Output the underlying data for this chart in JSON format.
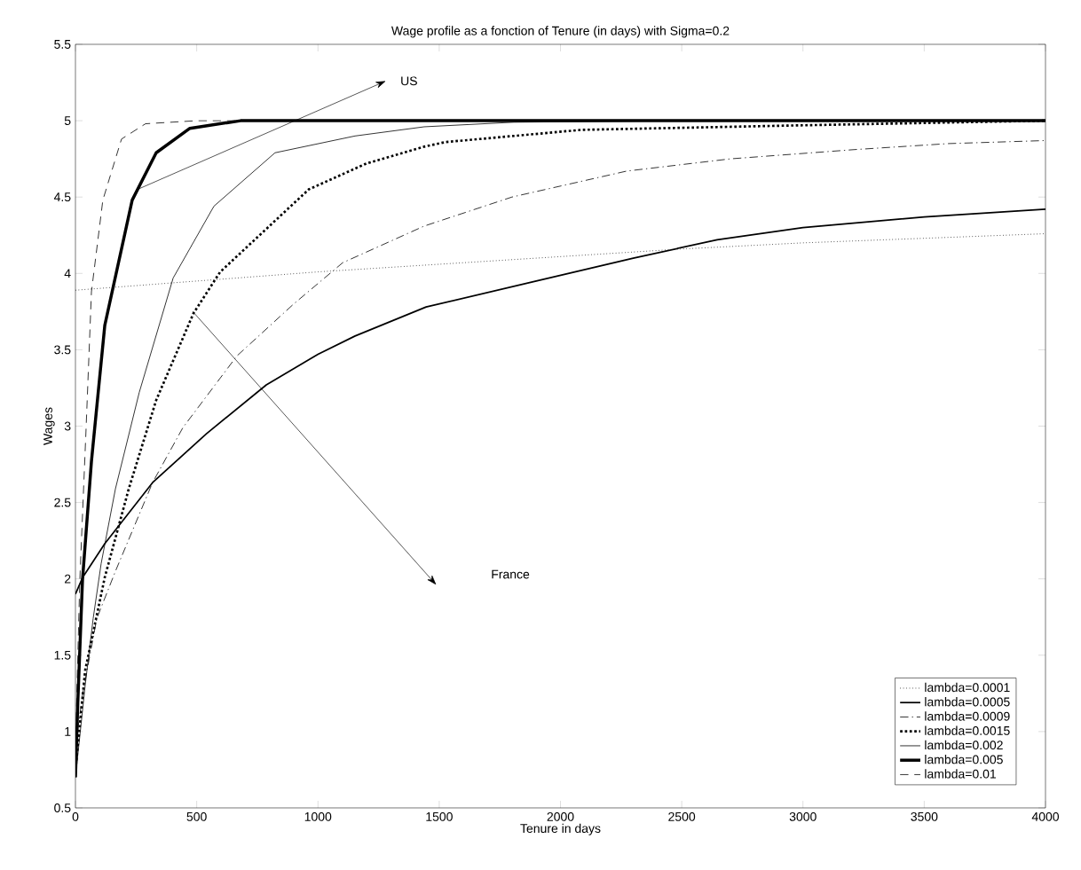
{
  "chart_data": {
    "type": "line",
    "title": "Wage profile as a fonction of Tenure (in days) with Sigma=0.2",
    "xlabel": "Tenure in days",
    "ylabel": "Wages",
    "xlim": [
      0,
      4000
    ],
    "ylim": [
      0.5,
      5.5
    ],
    "xticks": [
      0,
      500,
      1000,
      1500,
      2000,
      2500,
      3000,
      3500,
      4000
    ],
    "yticks": [
      0.5,
      1,
      1.5,
      2,
      2.5,
      3,
      3.5,
      4,
      4.5,
      5,
      5.5
    ],
    "grid": false,
    "legend": "bottom right",
    "annotations": [
      "US",
      "France"
    ],
    "series": [
      {
        "name": "lambda=0.0001",
        "color": "#000000",
        "line_style": "dotted",
        "x": [
          0,
          500,
          1000,
          1500,
          2000,
          2500,
          3000,
          3500,
          4000
        ],
        "values": [
          3.89,
          3.95,
          4.01,
          4.06,
          4.11,
          4.16,
          4.2,
          4.23,
          4.26
        ]
      },
      {
        "name": "lambda=0.0005",
        "color": "#000000",
        "line_style": "solid",
        "x": [
          0,
          30,
          121,
          318,
          540,
          787,
          1000,
          1153,
          1446,
          1900,
          2300,
          2646,
          3000,
          3500,
          4000
        ],
        "values": [
          1.9,
          2.01,
          2.23,
          2.63,
          2.95,
          3.27,
          3.47,
          3.59,
          3.78,
          3.95,
          4.1,
          4.22,
          4.3,
          4.37,
          4.42
        ]
      },
      {
        "name": "lambda=0.0009",
        "color": "#000000",
        "line_style": "dashdot",
        "x": [
          0,
          30,
          88,
          165,
          318,
          443,
          666,
          900,
          1102,
          1438,
          1800,
          2273,
          2700,
          3206,
          3600,
          4000
        ],
        "values": [
          0.9,
          1.25,
          1.74,
          2.05,
          2.63,
          2.99,
          3.46,
          3.8,
          4.07,
          4.31,
          4.5,
          4.67,
          4.75,
          4.81,
          4.85,
          4.87
        ]
      },
      {
        "name": "lambda=0.0015",
        "color": "#000000",
        "line_style": "dotted",
        "x": [
          0,
          40,
          121,
          220,
          333,
          487,
          597,
          962,
          1200,
          1438,
          1526,
          2086,
          3000,
          4000
        ],
        "values": [
          0.75,
          1.4,
          2.01,
          2.59,
          3.17,
          3.74,
          4.01,
          4.55,
          4.72,
          4.83,
          4.86,
          4.94,
          4.97,
          5.0
        ]
      },
      {
        "name": "lambda=0.002",
        "color": "#000000",
        "line_style": "solid",
        "x": [
          0,
          40,
          73,
          106,
          165,
          263,
          403,
          571,
          823,
          1153,
          1438,
          1808,
          2500,
          4000
        ],
        "values": [
          0.7,
          1.3,
          1.74,
          2.1,
          2.59,
          3.22,
          3.97,
          4.44,
          4.79,
          4.9,
          4.96,
          4.99,
          5.0,
          5.0
        ]
      },
      {
        "name": "lambda=0.005",
        "color": "#000000",
        "line_style": "solid",
        "x": [
          0,
          10,
          29,
          66,
          121,
          234,
          333,
          472,
          681,
          1000,
          4000
        ],
        "values": [
          0.7,
          1.2,
          1.99,
          2.77,
          3.66,
          4.48,
          4.79,
          4.95,
          5.0,
          5.0,
          5.0
        ]
      },
      {
        "name": "lambda=0.01",
        "color": "#000000",
        "line_style": "dashed",
        "x": [
          0,
          5,
          18,
          44,
          66,
          113,
          190,
          289,
          500,
          4000
        ],
        "values": [
          0.7,
          1.2,
          1.99,
          2.99,
          3.88,
          4.48,
          4.88,
          4.98,
          5.0,
          5.0
        ]
      }
    ]
  }
}
